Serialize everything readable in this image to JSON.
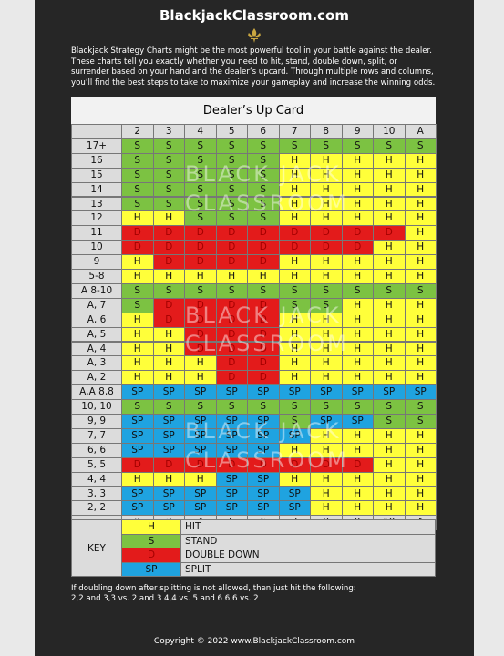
{
  "header": {
    "title": "BlackjackClassroom.com",
    "intro": "Blackjack Strategy Charts might be the most powerful tool in your battle against the dealer. These charts tell you exactly whether you need to hit, stand, double down, split, or surrender based on your hand and the dealer’s upcard. Through multiple rows and columns, you’ll find the best steps to take to maximize your gameplay and increase the winning odds."
  },
  "table": {
    "title": "Dealer’s Up Card",
    "watermark": [
      "BLACK JACK",
      "CLASSROOM"
    ],
    "columns": [
      "2",
      "3",
      "4",
      "5",
      "6",
      "7",
      "8",
      "9",
      "10",
      "A"
    ],
    "rows": [
      {
        "label": "17+",
        "cells": [
          "S",
          "S",
          "S",
          "S",
          "S",
          "S",
          "S",
          "S",
          "S",
          "S"
        ]
      },
      {
        "label": "16",
        "cells": [
          "S",
          "S",
          "S",
          "S",
          "S",
          "H",
          "H",
          "H",
          "H",
          "H"
        ]
      },
      {
        "label": "15",
        "cells": [
          "S",
          "S",
          "S",
          "S",
          "S",
          "H",
          "H",
          "H",
          "H",
          "H"
        ]
      },
      {
        "label": "14",
        "cells": [
          "S",
          "S",
          "S",
          "S",
          "S",
          "H",
          "H",
          "H",
          "H",
          "H"
        ]
      },
      {
        "label": "13",
        "cells": [
          "S",
          "S",
          "S",
          "S",
          "S",
          "H",
          "H",
          "H",
          "H",
          "H"
        ]
      },
      {
        "label": "12",
        "cells": [
          "H",
          "H",
          "S",
          "S",
          "S",
          "H",
          "H",
          "H",
          "H",
          "H"
        ]
      },
      {
        "label": "11",
        "cells": [
          "D",
          "D",
          "D",
          "D",
          "D",
          "D",
          "D",
          "D",
          "D",
          "H"
        ]
      },
      {
        "label": "10",
        "cells": [
          "D",
          "D",
          "D",
          "D",
          "D",
          "D",
          "D",
          "D",
          "H",
          "H"
        ]
      },
      {
        "label": "9",
        "cells": [
          "H",
          "D",
          "D",
          "D",
          "D",
          "H",
          "H",
          "H",
          "H",
          "H"
        ]
      },
      {
        "label": "5-8",
        "cells": [
          "H",
          "H",
          "H",
          "H",
          "H",
          "H",
          "H",
          "H",
          "H",
          "H"
        ]
      },
      {
        "label": "A 8-10",
        "cells": [
          "S",
          "S",
          "S",
          "S",
          "S",
          "S",
          "S",
          "S",
          "S",
          "S"
        ]
      },
      {
        "label": "A, 7",
        "cells": [
          "S",
          "D",
          "D",
          "D",
          "D",
          "S",
          "S",
          "H",
          "H",
          "H"
        ]
      },
      {
        "label": "A, 6",
        "cells": [
          "H",
          "D",
          "D",
          "D",
          "D",
          "H",
          "H",
          "H",
          "H",
          "H"
        ]
      },
      {
        "label": "A, 5",
        "cells": [
          "H",
          "H",
          "D",
          "D",
          "D",
          "H",
          "H",
          "H",
          "H",
          "H"
        ]
      },
      {
        "label": "A, 4",
        "cells": [
          "H",
          "H",
          "D",
          "D",
          "D",
          "H",
          "H",
          "H",
          "H",
          "H"
        ]
      },
      {
        "label": "A, 3",
        "cells": [
          "H",
          "H",
          "H",
          "D",
          "D",
          "H",
          "H",
          "H",
          "H",
          "H"
        ]
      },
      {
        "label": "A, 2",
        "cells": [
          "H",
          "H",
          "H",
          "D",
          "D",
          "H",
          "H",
          "H",
          "H",
          "H"
        ]
      },
      {
        "label": "A,A 8,8",
        "cells": [
          "SP",
          "SP",
          "SP",
          "SP",
          "SP",
          "SP",
          "SP",
          "SP",
          "SP",
          "SP"
        ]
      },
      {
        "label": "10, 10",
        "cells": [
          "S",
          "S",
          "S",
          "S",
          "S",
          "S",
          "S",
          "S",
          "S",
          "S"
        ]
      },
      {
        "label": "9, 9",
        "cells": [
          "SP",
          "SP",
          "SP",
          "SP",
          "SP",
          "S",
          "SP",
          "SP",
          "S",
          "S"
        ]
      },
      {
        "label": "7, 7",
        "cells": [
          "SP",
          "SP",
          "SP",
          "SP",
          "SP",
          "SP",
          "H",
          "H",
          "H",
          "H"
        ]
      },
      {
        "label": "6, 6",
        "cells": [
          "SP",
          "SP",
          "SP",
          "SP",
          "SP",
          "H",
          "H",
          "H",
          "H",
          "H"
        ]
      },
      {
        "label": "5, 5",
        "cells": [
          "D",
          "D",
          "D",
          "D",
          "D",
          "D",
          "D",
          "D",
          "H",
          "H"
        ]
      },
      {
        "label": "4, 4",
        "cells": [
          "H",
          "H",
          "H",
          "SP",
          "SP",
          "H",
          "H",
          "H",
          "H",
          "H"
        ]
      },
      {
        "label": "3, 3",
        "cells": [
          "SP",
          "SP",
          "SP",
          "SP",
          "SP",
          "SP",
          "H",
          "H",
          "H",
          "H"
        ]
      },
      {
        "label": "2, 2",
        "cells": [
          "SP",
          "SP",
          "SP",
          "SP",
          "SP",
          "SP",
          "H",
          "H",
          "H",
          "H"
        ]
      }
    ],
    "code_colors": {
      "H": "#ffff3a",
      "S": "#7cc242",
      "D": "#e31b1b",
      "SP": "#1fa3e0"
    }
  },
  "key": {
    "label": "KEY",
    "items": [
      {
        "code": "H",
        "text": "HIT"
      },
      {
        "code": "S",
        "text": "STAND"
      },
      {
        "code": "D",
        "text": "DOUBLE DOWN"
      },
      {
        "code": "SP",
        "text": "SPLIT"
      }
    ]
  },
  "note": [
    "If doubling down after splitting is not allowed, then just hit the following:",
    "2,2 and 3,3 vs. 2 and 3   4,4 vs. 5 and 6   6,6 vs. 2"
  ],
  "footer": "Copyright © 2022 www.BlackjackClassroom.com"
}
